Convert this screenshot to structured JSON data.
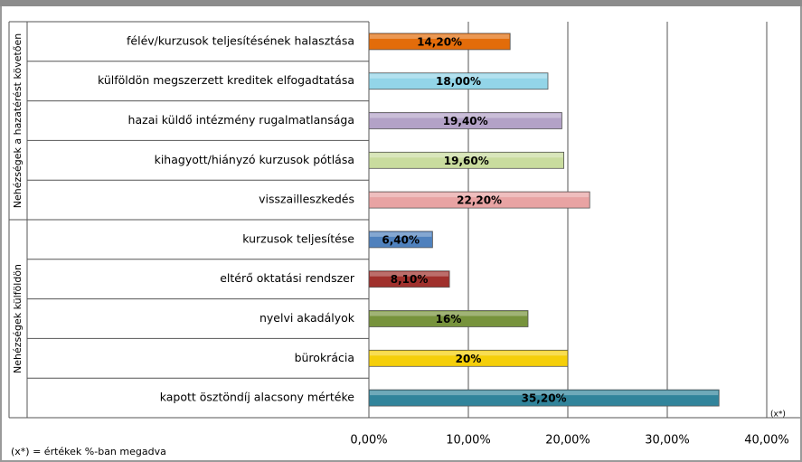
{
  "chart_data": {
    "type": "bar",
    "orientation": "horizontal",
    "groups": [
      {
        "label": "Nehézségek a hazatérést követően",
        "categories": [
          "félév/kurzusok teljesítésének halasztása",
          "külföldön megszerzett kreditek elfogadtatása",
          "hazai küldő intézmény rugalmatlansága",
          "kihagyott/hiányzó kurzusok pótlása",
          "visszailleszkedés"
        ],
        "values": [
          14.2,
          18,
          19.4,
          19.6,
          22.2
        ],
        "value_labels": [
          "14,20%",
          "18,00%",
          "19,40%",
          "19,60%",
          "22,20%"
        ],
        "colors": [
          "#e36c0a",
          "#93d5e8",
          "#b3a2c7",
          "#c9dc9e",
          "#e8a3a3"
        ]
      },
      {
        "label": "Nehézségek külföldön",
        "categories": [
          "kurzusok teljesítése",
          "eltérő oktatási rendszer",
          "nyelvi akadályok",
          "bürokrácia",
          "kapott ösztöndíj alacsony mértéke"
        ],
        "values": [
          6.4,
          8.1,
          16,
          20,
          35.2
        ],
        "value_labels": [
          "6,40%",
          "8,10%",
          "16%",
          "20%",
          "35,20%"
        ],
        "colors": [
          "#4f81bd",
          "#a0302c",
          "#77933c",
          "#f5cf0a",
          "#31849b"
        ]
      }
    ],
    "xlim": [
      0,
      40
    ],
    "xticks": [
      {
        "value": 0,
        "label": "0,00%"
      },
      {
        "value": 10,
        "label": "10,00%"
      },
      {
        "value": 20,
        "label": "20,00%"
      },
      {
        "value": 30,
        "label": "30,00%"
      },
      {
        "value": 40,
        "label": "40,00%"
      }
    ],
    "grid": true,
    "axis_unit": "(x*)",
    "footnote": "(x*) = értékek %-ban megadva"
  }
}
